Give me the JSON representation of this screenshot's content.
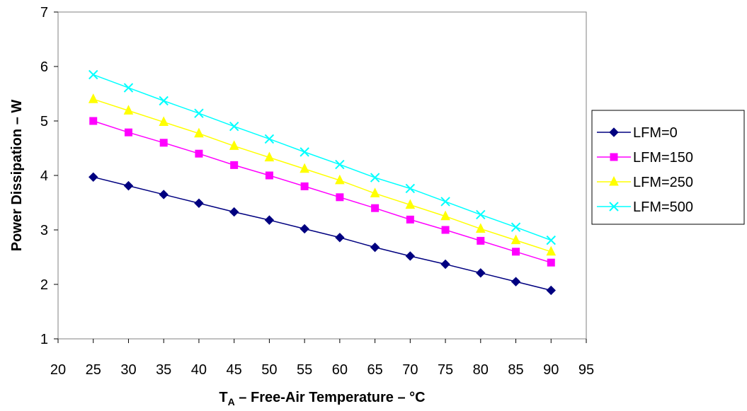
{
  "chart_data": {
    "type": "line",
    "title": "",
    "xlabel": {
      "main": "T",
      "sub": "A",
      "rest": " – Free-Air Temperature – °C"
    },
    "ylabel": "Power Dissipation – W",
    "xlim": [
      20,
      95
    ],
    "ylim": [
      1,
      7
    ],
    "xticks": [
      "20",
      "25",
      "30",
      "35",
      "40",
      "45",
      "50",
      "55",
      "60",
      "65",
      "70",
      "75",
      "80",
      "85",
      "90",
      "95"
    ],
    "yticks": [
      "1",
      "2",
      "3",
      "4",
      "5",
      "6",
      "7"
    ],
    "grid": false,
    "legend_position": "right",
    "x": [
      25,
      30,
      35,
      40,
      45,
      50,
      55,
      60,
      65,
      70,
      75,
      80,
      85,
      90
    ],
    "series": [
      {
        "name": "LFM=0",
        "color": "#000080",
        "marker": "diamond",
        "values": [
          3.97,
          3.81,
          3.65,
          3.49,
          3.33,
          3.18,
          3.02,
          2.86,
          2.68,
          2.52,
          2.37,
          2.21,
          2.05,
          1.89
        ]
      },
      {
        "name": "LFM=150",
        "color": "#FF00FF",
        "marker": "square",
        "values": [
          5.0,
          4.79,
          4.6,
          4.4,
          4.19,
          4.0,
          3.8,
          3.6,
          3.4,
          3.19,
          3.0,
          2.8,
          2.6,
          2.4
        ]
      },
      {
        "name": "LFM=250",
        "color": "#FFFF00",
        "marker": "triangle",
        "values": [
          5.4,
          5.19,
          4.98,
          4.77,
          4.54,
          4.33,
          4.12,
          3.91,
          3.67,
          3.46,
          3.25,
          3.02,
          2.81,
          2.6
        ]
      },
      {
        "name": "LFM=500",
        "color": "#00FFFF",
        "marker": "x",
        "values": [
          5.85,
          5.61,
          5.37,
          5.14,
          4.9,
          4.67,
          4.43,
          4.2,
          3.96,
          3.76,
          3.52,
          3.28,
          3.05,
          2.81
        ]
      }
    ]
  }
}
